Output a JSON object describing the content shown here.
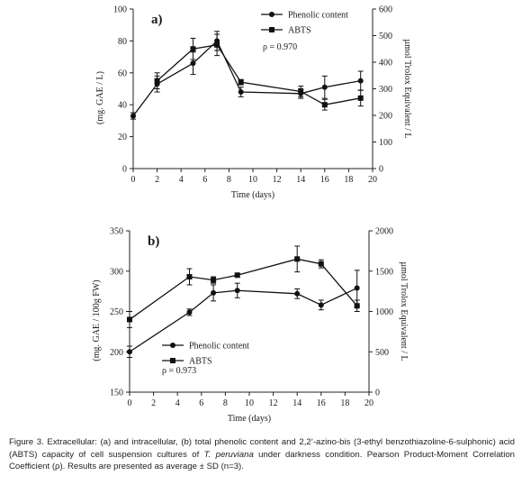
{
  "chart_data": [
    {
      "type": "line",
      "panel_label": "a)",
      "xlabel": "Time (days)",
      "ylabel": "(mg. GAE / L)",
      "ylabel_right": "µmol Trolox Equivalent / L",
      "xlim": [
        0,
        20
      ],
      "ylim": [
        0,
        100
      ],
      "ylim_right": [
        0,
        600
      ],
      "x_ticks": [
        0,
        2,
        4,
        6,
        8,
        10,
        12,
        14,
        16,
        18,
        20
      ],
      "y_ticks": [
        0,
        20,
        40,
        60,
        80,
        100
      ],
      "y_ticks_right": [
        0,
        100,
        200,
        300,
        400,
        500,
        600
      ],
      "annotation": "ρ = 0.970",
      "legend_position": "top-right",
      "series": [
        {
          "name": "Phenolic content",
          "marker": "circle",
          "axis": "left",
          "x": [
            0,
            2,
            5,
            7,
            9,
            14,
            16,
            19
          ],
          "y": [
            33,
            53,
            66,
            80,
            48,
            47,
            51,
            55
          ],
          "err": [
            2,
            5,
            7,
            6,
            3,
            3,
            7,
            6
          ]
        },
        {
          "name": "ABTS",
          "marker": "square",
          "axis": "right",
          "x": [
            2,
            5,
            7,
            9,
            14,
            16,
            19
          ],
          "y": [
            330,
            450,
            465,
            325,
            290,
            240,
            265
          ],
          "err": [
            30,
            40,
            40,
            10,
            20,
            20,
            30
          ]
        }
      ]
    },
    {
      "type": "line",
      "panel_label": "b)",
      "xlabel": "Time (days)",
      "ylabel": "(mg. GAE / 100g FW)",
      "ylabel_right": "µmol Trolox Equivalent / L",
      "xlim": [
        0,
        20
      ],
      "ylim": [
        150,
        350
      ],
      "ylim_right": [
        0,
        2000
      ],
      "x_ticks": [
        0,
        2,
        4,
        6,
        8,
        10,
        12,
        14,
        16,
        18,
        20
      ],
      "y_ticks": [
        150,
        200,
        250,
        300,
        350
      ],
      "y_ticks_right": [
        0,
        500,
        1000,
        1500,
        2000
      ],
      "annotation": "ρ = 0.973",
      "legend_position": "bottom-left",
      "series": [
        {
          "name": "Phenolic content",
          "marker": "circle",
          "axis": "left",
          "x": [
            0,
            5,
            7,
            9,
            14,
            16,
            19
          ],
          "y": [
            200,
            249,
            273,
            276,
            272,
            258,
            279
          ],
          "err": [
            7,
            4,
            10,
            9,
            6,
            6,
            22
          ]
        },
        {
          "name": "ABTS",
          "marker": "square",
          "axis": "right",
          "x": [
            0,
            5,
            7,
            9,
            14,
            16,
            19
          ],
          "y": [
            900,
            1430,
            1390,
            1450,
            1650,
            1590,
            1070
          ],
          "err": [
            100,
            100,
            40,
            25,
            160,
            50,
            70
          ]
        }
      ]
    }
  ],
  "caption": {
    "part1": "Figure 3. Extracellular: (a) and intracellular, (b) total phenolic content and 2,2’-azino-bis (3-ethyl benzothiazoline-6-sulphonic) acid (ABTS) capacity of cell suspension cultures of ",
    "species": "T. peruviana",
    "part2": " under darkness condition. Pearson Product-Moment Correlation Coefficient (ρ). Results are presented as average ± SD (n=3)."
  }
}
